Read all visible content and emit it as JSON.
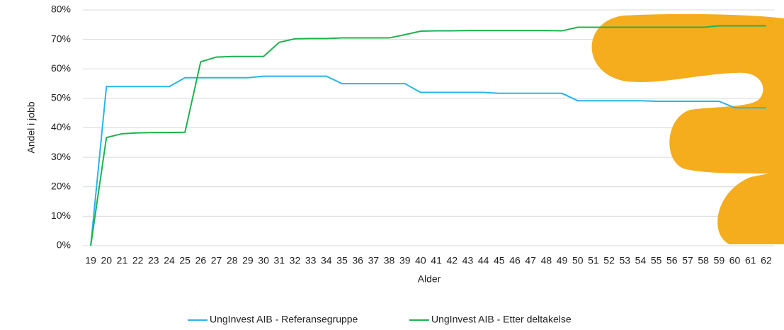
{
  "chart_data": {
    "type": "line",
    "x_label": "Alder",
    "y_label": "Andel i jobb",
    "categories": [
      "19",
      "20",
      "21",
      "22",
      "23",
      "24",
      "25",
      "26",
      "27",
      "28",
      "29",
      "30",
      "31",
      "32",
      "33",
      "34",
      "35",
      "36",
      "37",
      "38",
      "39",
      "40",
      "41",
      "42",
      "43",
      "44",
      "45",
      "46",
      "47",
      "48",
      "49",
      "50",
      "51",
      "52",
      "53",
      "54",
      "55",
      "56",
      "57",
      "58",
      "59",
      "60",
      "61",
      "62"
    ],
    "series": [
      {
        "name": "UngInvest AIB - Referansegruppe",
        "color": "#29b5e8",
        "values": [
          0,
          54,
          54,
          54,
          54,
          54,
          57,
          57,
          57,
          57,
          57,
          57.5,
          57.5,
          57.5,
          57.5,
          57.5,
          55,
          55,
          55,
          55,
          55,
          52,
          52,
          52,
          52,
          52,
          51.7,
          51.7,
          51.7,
          51.7,
          51.7,
          49.2,
          49.2,
          49.2,
          49.2,
          49.2,
          49,
          49,
          49,
          49,
          49,
          46.8,
          46.8,
          46.8
        ]
      },
      {
        "name": "UngInvest AIB - Etter deltakelse",
        "color": "#1db34f",
        "values": [
          0,
          36.7,
          38,
          38.3,
          38.4,
          38.4,
          38.5,
          62.4,
          64,
          64.2,
          64.2,
          64.2,
          69,
          70.2,
          70.3,
          70.3,
          70.5,
          70.5,
          70.5,
          70.5,
          71.6,
          72.8,
          72.9,
          72.9,
          73,
          73,
          73,
          73,
          73,
          73,
          72.9,
          74.1,
          74.1,
          74.1,
          74.1,
          74.1,
          74.1,
          74.1,
          74.1,
          74.1,
          74.6,
          74.6,
          74.6,
          74.6
        ]
      }
    ],
    "ylim": [
      0,
      80
    ],
    "yticks": [
      {
        "value": 0,
        "label": "0%"
      },
      {
        "value": 10,
        "label": "10%"
      },
      {
        "value": 20,
        "label": "20%"
      },
      {
        "value": 30,
        "label": "30%"
      },
      {
        "value": 40,
        "label": "40%"
      },
      {
        "value": 50,
        "label": "50%"
      },
      {
        "value": 60,
        "label": "60%"
      },
      {
        "value": 70,
        "label": "70%"
      },
      {
        "value": 80,
        "label": "80%"
      }
    ],
    "grid": true
  }
}
